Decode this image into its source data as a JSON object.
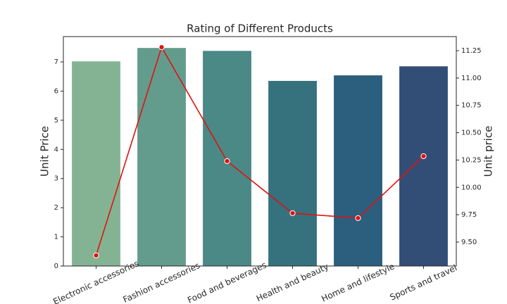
{
  "chart_data": {
    "type": "bar_line",
    "title": "Rating of Different Products",
    "ylabel": "Unit Price",
    "y2label": "Unit price",
    "categories": [
      "Electronic accessories",
      "Fashion accessories",
      "Food and beverages",
      "Health and beauty",
      "Home and lifestyle",
      "Sports and travel"
    ],
    "series": [
      {
        "type": "bar",
        "colors": [
          "#84b393",
          "#639c8c",
          "#4a8985",
          "#35727e",
          "#2c5e7e",
          "#324e77"
        ],
        "values": [
          7.02,
          7.48,
          7.38,
          6.35,
          6.54,
          6.85
        ]
      },
      {
        "type": "line",
        "axis": "y2",
        "color": "#e0120f",
        "values": [
          9.378,
          11.282,
          10.24,
          9.764,
          9.719,
          10.285
        ]
      }
    ],
    "ylim": [
      0,
      7.87
    ],
    "yticks": [
      0,
      1,
      2,
      3,
      4,
      5,
      6,
      7
    ],
    "y2lim": [
      9.281,
      11.379
    ],
    "y2ticks": [
      {
        "value": 9.5,
        "label": "9.50"
      },
      {
        "value": 9.75,
        "label": "9.75"
      },
      {
        "value": 10,
        "label": "10.00"
      },
      {
        "value": 10.25,
        "label": "10.25"
      },
      {
        "value": 10.5,
        "label": "10.50"
      },
      {
        "value": 10.75,
        "label": "10.75"
      },
      {
        "value": 11,
        "label": "11.00"
      },
      {
        "value": 11.25,
        "label": "11.25"
      }
    ],
    "grid": false
  }
}
